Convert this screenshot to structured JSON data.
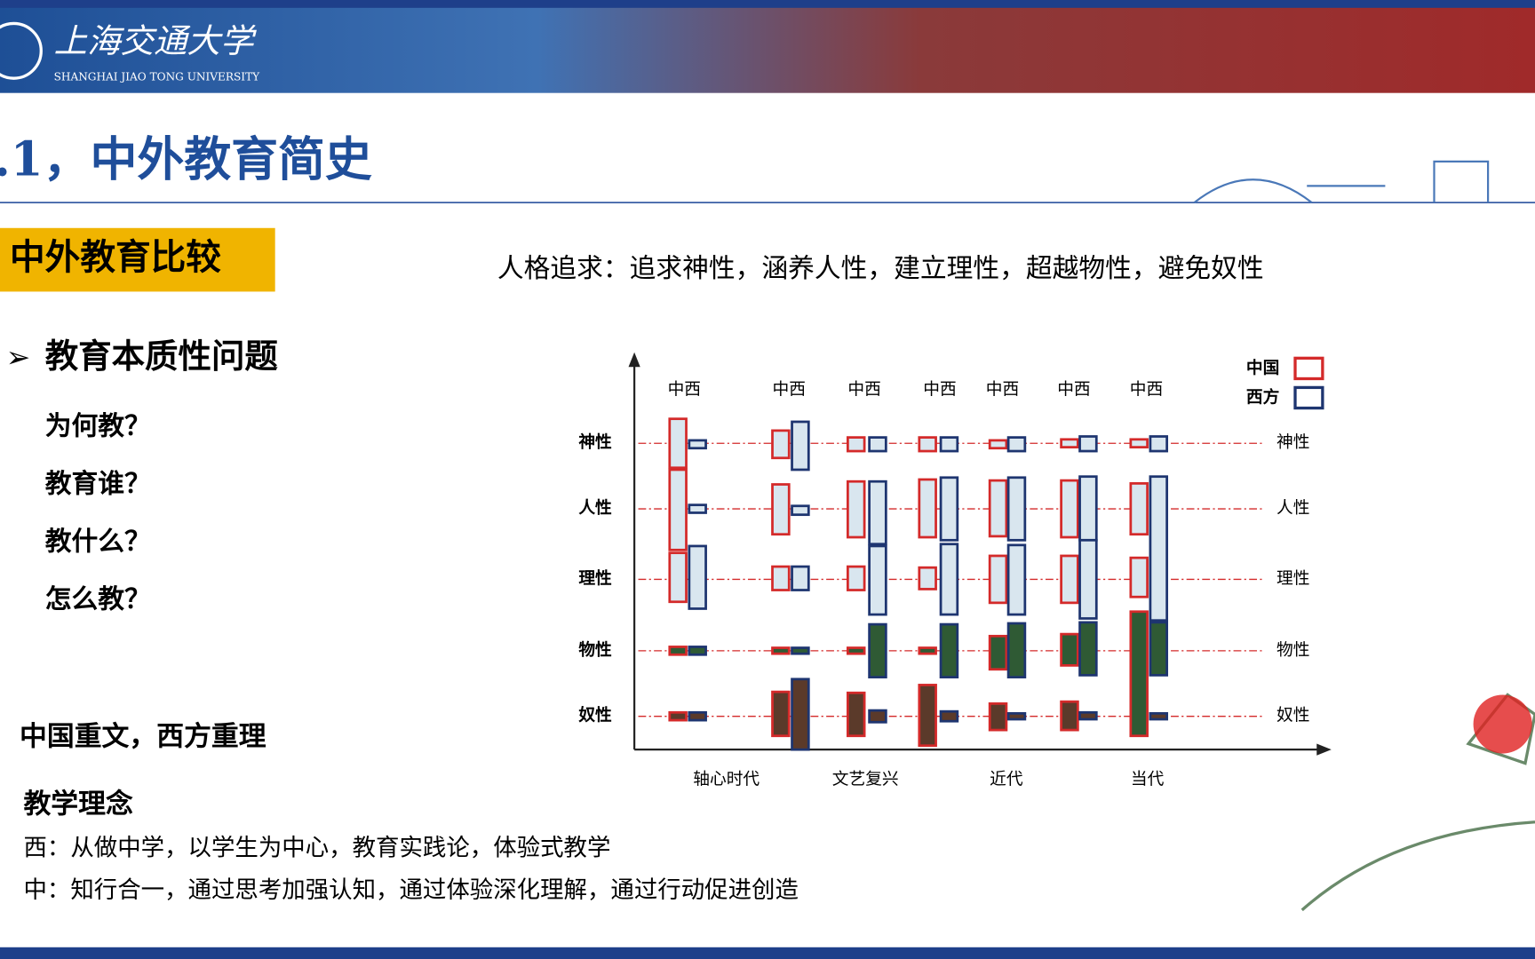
{
  "header": {
    "university": "上海交通大学",
    "university_en": "SHANGHAI JIAO TONG UNIVERSITY"
  },
  "title": ".1，中外教育简史",
  "section_label": "中外教育比较",
  "subtitle": "人格追求：追求神性，涵养人性，建立理性，超越物性，避免奴性",
  "bullet": {
    "heading": "教育本质性问题",
    "questions": [
      "为何教？",
      "教育谁？",
      "教什么？",
      "怎么教？"
    ]
  },
  "note": "中国重文，西方重理",
  "teaching": {
    "heading": "教学理念",
    "lines": [
      "西：从做中学，以学生为中心，教育实践论，体验式教学",
      "中：知行合一，通过思考加强认知，通过体验深化理解，通过行动促进创造"
    ]
  },
  "diagram": {
    "column_labels": [
      "中西",
      "中西",
      "中西",
      "中西",
      "中西",
      "中西",
      "中西"
    ],
    "rows": [
      "神性",
      "人性",
      "理性",
      "物性",
      "奴性"
    ],
    "eras": [
      "轴心时代",
      "文艺复兴",
      "近代",
      "当代"
    ],
    "legend": [
      "中国",
      "西方"
    ]
  }
}
